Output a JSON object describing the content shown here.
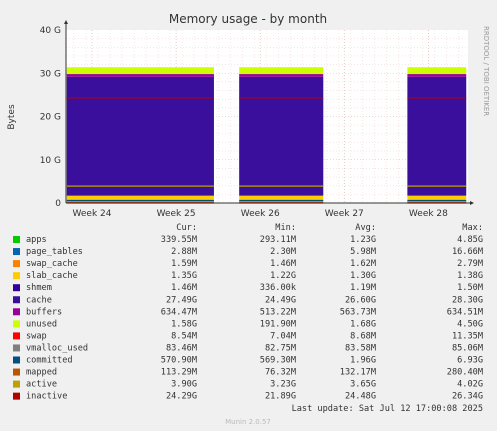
{
  "chart_data": {
    "type": "area",
    "title": "Memory usage - by month",
    "ylabel": "Bytes",
    "ylim": [
      0,
      40
    ],
    "y_unit": "G",
    "yticks": [
      "0",
      "10 G",
      "20 G",
      "30 G",
      "40 G"
    ],
    "xticks": [
      "Week 24",
      "Week 25",
      "Week 26",
      "Week 27",
      "Week 28"
    ],
    "side_label": "RRDTOOL / TOBI OETIKER",
    "grid": true,
    "segments_visible": [
      {
        "from_week": 23.7,
        "to_week": 25.45
      },
      {
        "from_week": 25.75,
        "to_week": 26.75
      },
      {
        "from_week": 27.75,
        "to_week": 28.45
      }
    ],
    "approx_values_G": {
      "apps": 0.34,
      "page_tables": 0.003,
      "swap_cache": 0.0016,
      "slab_cache": 1.35,
      "shmem": 0.0015,
      "cache": 27.49,
      "buffers": 0.63,
      "unused": 1.58,
      "swap": 0.0085,
      "committed": 0.57,
      "mapped": 0.11,
      "active": 3.9,
      "inactive": 24.29
    },
    "columns": [
      "Cur:",
      "Min:",
      "Avg:",
      "Max:"
    ],
    "legend": [
      {
        "name": "apps",
        "color": "#00cc00",
        "cur": "339.55M",
        "min": "293.11M",
        "avg": "1.23G",
        "max": "4.85G"
      },
      {
        "name": "page_tables",
        "color": "#0066b3",
        "cur": "2.88M",
        "min": "2.30M",
        "avg": "5.98M",
        "max": "16.66M"
      },
      {
        "name": "swap_cache",
        "color": "#ff8000",
        "cur": "1.59M",
        "min": "1.46M",
        "avg": "1.62M",
        "max": "2.79M"
      },
      {
        "name": "slab_cache",
        "color": "#ffcc00",
        "cur": "1.35G",
        "min": "1.22G",
        "avg": "1.30G",
        "max": "1.38G"
      },
      {
        "name": "shmem",
        "color": "#330099",
        "cur": "1.46M",
        "min": "336.00k",
        "avg": "1.19M",
        "max": "1.50M"
      },
      {
        "name": "cache",
        "color": "#3a0f9b",
        "cur": "27.49G",
        "min": "24.49G",
        "avg": "26.60G",
        "max": "28.30G"
      },
      {
        "name": "buffers",
        "color": "#990099",
        "cur": "634.47M",
        "min": "513.22M",
        "avg": "563.73M",
        "max": "634.51M"
      },
      {
        "name": "unused",
        "color": "#ccff00",
        "cur": "1.58G",
        "min": "191.90M",
        "avg": "1.68G",
        "max": "4.50G"
      },
      {
        "name": "swap",
        "color": "#ff0000",
        "cur": "8.54M",
        "min": "7.04M",
        "avg": "8.68M",
        "max": "11.35M"
      },
      {
        "name": "vmalloc_used",
        "color": "#808080",
        "cur": "83.46M",
        "min": "82.75M",
        "avg": "83.58M",
        "max": "85.06M"
      },
      {
        "name": "committed",
        "color": "#005080",
        "cur": "570.90M",
        "min": "569.30M",
        "avg": "1.96G",
        "max": "6.93G"
      },
      {
        "name": "mapped",
        "color": "#bb5500",
        "cur": "113.29M",
        "min": "76.32M",
        "avg": "132.17M",
        "max": "280.40M"
      },
      {
        "name": "active",
        "color": "#c0a000",
        "cur": "3.90G",
        "min": "3.23G",
        "avg": "3.65G",
        "max": "4.02G"
      },
      {
        "name": "inactive",
        "color": "#b00000",
        "cur": "24.29G",
        "min": "21.89G",
        "avg": "24.48G",
        "max": "26.34G"
      }
    ]
  },
  "footer": {
    "last_update": "Last update: Sat Jul 12 17:00:08 2025",
    "munin_version": "Munin 2.0.57"
  }
}
